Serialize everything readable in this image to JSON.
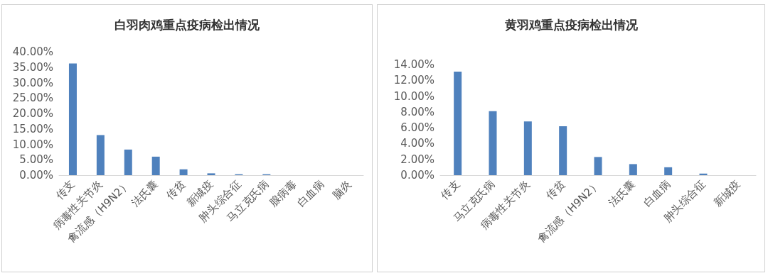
{
  "chart_data": [
    {
      "type": "bar",
      "title": "白羽肉鸡重点疫病检出情况",
      "categories": [
        "传支",
        "病毒性关节炎",
        "禽流感（H9N2）",
        "法氏囊",
        "传贫",
        "新城疫",
        "肿头综合征",
        "马立克氏病",
        "腺病毒",
        "白血病",
        "脑炎"
      ],
      "values": [
        36.2,
        13.0,
        8.3,
        6.0,
        1.9,
        0.6,
        0.3,
        0.3,
        0,
        0,
        0
      ],
      "color": "#4f81bd",
      "ylim": [
        0,
        40
      ],
      "yticks": [
        {
          "value": 0,
          "label": "0.00%"
        },
        {
          "value": 5,
          "label": "5.00%"
        },
        {
          "value": 10,
          "label": "10.00%"
        },
        {
          "value": 15,
          "label": "15.00%"
        },
        {
          "value": 20,
          "label": "20.00%"
        },
        {
          "value": 25,
          "label": "25.00%"
        },
        {
          "value": 30,
          "label": "30.00%"
        },
        {
          "value": 35,
          "label": "35.00%"
        },
        {
          "value": 40,
          "label": "40.00%"
        }
      ],
      "grid": false
    },
    {
      "type": "bar",
      "title": "黄羽鸡重点疫病检出情况",
      "categories": [
        "传支",
        "马立克氏病",
        "病毒性关节炎",
        "传贫",
        "禽流感（H9N2）",
        "法氏囊",
        "白血病",
        "肿头综合征",
        "新城疫"
      ],
      "values": [
        13.1,
        8.1,
        6.8,
        6.2,
        2.3,
        1.4,
        1.0,
        0.2,
        0
      ],
      "color": "#4f81bd",
      "ylim": [
        0,
        14
      ],
      "yticks": [
        {
          "value": 0,
          "label": "0.00%"
        },
        {
          "value": 2,
          "label": "2.00%"
        },
        {
          "value": 4,
          "label": "4.00%"
        },
        {
          "value": 6,
          "label": "6.00%"
        },
        {
          "value": 8,
          "label": "8.00%"
        },
        {
          "value": 10,
          "label": "10.00%"
        },
        {
          "value": 12,
          "label": "12.00%"
        },
        {
          "value": 14,
          "label": "14.00%"
        }
      ],
      "grid": false
    }
  ]
}
